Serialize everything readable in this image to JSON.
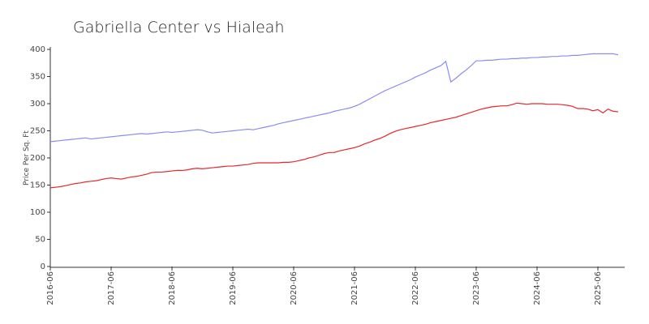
{
  "chart_data": {
    "type": "line",
    "title": "Gabriella Center vs Hialeah",
    "y_label": "Price Per Sq. Ft",
    "x": [
      "2016-06",
      "2016-07",
      "2016-08",
      "2016-09",
      "2016-10",
      "2016-11",
      "2016-12",
      "2017-01",
      "2017-02",
      "2017-03",
      "2017-04",
      "2017-05",
      "2017-06",
      "2017-07",
      "2017-08",
      "2017-09",
      "2017-10",
      "2017-11",
      "2017-12",
      "2018-01",
      "2018-02",
      "2018-03",
      "2018-04",
      "2018-05",
      "2018-06",
      "2018-07",
      "2018-08",
      "2018-09",
      "2018-10",
      "2018-11",
      "2018-12",
      "2019-01",
      "2019-02",
      "2019-03",
      "2019-04",
      "2019-05",
      "2019-06",
      "2019-07",
      "2019-08",
      "2019-09",
      "2019-10",
      "2019-11",
      "2019-12",
      "2020-01",
      "2020-02",
      "2020-03",
      "2020-04",
      "2020-05",
      "2020-06",
      "2020-07",
      "2020-08",
      "2020-09",
      "2020-10",
      "2020-11",
      "2020-12",
      "2021-01",
      "2021-02",
      "2021-03",
      "2021-04",
      "2021-05",
      "2021-06",
      "2021-07",
      "2021-08",
      "2021-09",
      "2021-10",
      "2021-11",
      "2021-12",
      "2022-01",
      "2022-02",
      "2022-03",
      "2022-04",
      "2022-05",
      "2022-06",
      "2022-07",
      "2022-08",
      "2022-09",
      "2022-10",
      "2022-11",
      "2022-12",
      "2023-01",
      "2023-02",
      "2023-03",
      "2023-04",
      "2023-05",
      "2023-06",
      "2023-07",
      "2023-08",
      "2023-09",
      "2023-10",
      "2023-11",
      "2023-12",
      "2024-01",
      "2024-02",
      "2024-03",
      "2024-04",
      "2024-05",
      "2024-06",
      "2024-07",
      "2024-08",
      "2024-09",
      "2024-10",
      "2024-11",
      "2024-12",
      "2025-01",
      "2025-02",
      "2025-03",
      "2025-04",
      "2025-05",
      "2025-06",
      "2025-07",
      "2025-08",
      "2025-09",
      "2025-10"
    ],
    "series": [
      {
        "color": "#8c8cf0",
        "values": [
          230,
          231,
          232,
          233,
          234,
          235,
          236,
          237,
          235,
          236,
          237,
          238,
          239,
          240,
          241,
          242,
          243,
          244,
          245,
          244,
          245,
          246,
          247,
          248,
          247,
          248,
          249,
          250,
          251,
          252,
          251,
          248,
          246,
          247,
          248,
          249,
          250,
          251,
          252,
          253,
          252,
          254,
          256,
          258,
          260,
          263,
          265,
          267,
          269,
          271,
          273,
          275,
          277,
          279,
          281,
          283,
          286,
          288,
          290,
          292,
          295,
          299,
          304,
          309,
          314,
          319,
          324,
          328,
          332,
          336,
          340,
          344,
          349,
          353,
          357,
          362,
          366,
          370,
          378,
          340,
          347,
          355,
          362,
          370,
          379,
          379,
          380,
          380,
          381,
          382,
          382,
          383,
          383,
          384,
          384,
          385,
          385,
          386,
          386,
          387,
          387,
          388,
          388,
          389,
          389,
          390,
          391,
          392,
          392,
          392,
          392,
          392,
          390
        ]
      },
      {
        "color": "#e8262c",
        "values": [
          145,
          146,
          147,
          149,
          151,
          153,
          154,
          156,
          157,
          158,
          160,
          162,
          163,
          162,
          161,
          163,
          165,
          166,
          168,
          170,
          173,
          174,
          174,
          175,
          176,
          177,
          177,
          178,
          180,
          181,
          180,
          181,
          182,
          183,
          184,
          185,
          185,
          186,
          187,
          188,
          190,
          191,
          191,
          191,
          191,
          191,
          192,
          192,
          193,
          195,
          197,
          200,
          202,
          205,
          208,
          210,
          210,
          213,
          215,
          217,
          219,
          222,
          226,
          229,
          233,
          236,
          240,
          245,
          249,
          252,
          254,
          256,
          258,
          260,
          262,
          265,
          267,
          269,
          271,
          273,
          275,
          278,
          281,
          284,
          287,
          290,
          292,
          294,
          295,
          296,
          296,
          298,
          301,
          300,
          299,
          300,
          300,
          300,
          299,
          299,
          299,
          298,
          297,
          295,
          291,
          291,
          290,
          287,
          289,
          283,
          290,
          286,
          285
        ]
      }
    ],
    "xticks": [
      "2016-06",
      "2017-06",
      "2018-06",
      "2019-06",
      "2020-06",
      "2021-06",
      "2022-06",
      "2023-06",
      "2024-06",
      "2025-06"
    ],
    "ylim": [
      0,
      400
    ],
    "yticks": [
      0,
      50,
      100,
      150,
      200,
      250,
      300,
      350,
      400
    ],
    "grid": false
  }
}
